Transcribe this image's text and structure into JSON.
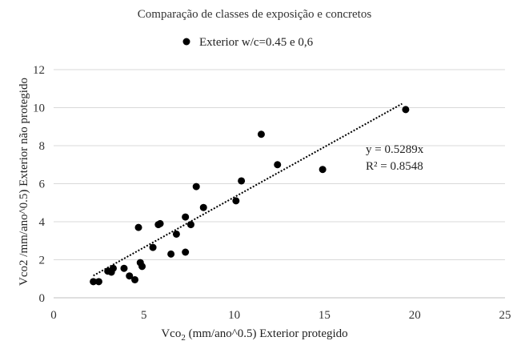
{
  "chart_data": {
    "type": "scatter",
    "title": "Comparação de classes de exposição e concretos",
    "legend": {
      "placement": "top",
      "entries": [
        "Exterior w/c=0.45 e 0,6"
      ]
    },
    "xlabel": {
      "main": "Vco",
      "sub": "2",
      "rest": " (mm/ano^0.5) Exterior protegido"
    },
    "ylabel": "Vco2 /mm/ano^0.5) Exterior não protegido",
    "xlim": [
      0,
      25
    ],
    "ylim": [
      0,
      12
    ],
    "x_ticks": [
      "0",
      "5",
      "10",
      "15",
      "20",
      "25"
    ],
    "y_ticks": [
      "0",
      "2",
      "4",
      "6",
      "8",
      "10",
      "12"
    ],
    "grid": "horizontal",
    "series": [
      {
        "name": "Exterior w/c=0.45 e 0,6",
        "color": "#000000",
        "points": [
          [
            2.2,
            0.85
          ],
          [
            2.5,
            0.85
          ],
          [
            3.0,
            1.4
          ],
          [
            3.2,
            1.35
          ],
          [
            3.3,
            1.55
          ],
          [
            3.9,
            1.55
          ],
          [
            4.2,
            1.15
          ],
          [
            4.5,
            0.95
          ],
          [
            4.7,
            3.7
          ],
          [
            4.8,
            1.85
          ],
          [
            4.9,
            1.65
          ],
          [
            5.5,
            2.65
          ],
          [
            5.8,
            3.85
          ],
          [
            5.9,
            3.9
          ],
          [
            6.5,
            2.3
          ],
          [
            6.8,
            3.35
          ],
          [
            7.3,
            4.25
          ],
          [
            7.3,
            2.4
          ],
          [
            7.6,
            3.85
          ],
          [
            7.9,
            5.85
          ],
          [
            8.3,
            4.75
          ],
          [
            10.1,
            5.1
          ],
          [
            10.4,
            6.15
          ],
          [
            11.5,
            8.6
          ],
          [
            12.4,
            7.0
          ],
          [
            14.9,
            6.75
          ],
          [
            19.5,
            9.9
          ]
        ]
      }
    ],
    "trendline": {
      "type": "linear-through-origin",
      "slope": 0.5289,
      "x_range": [
        2.2,
        19.3
      ],
      "style": "dotted",
      "equation": "y = 0.5289x",
      "r2": "R² = 0.8548"
    }
  }
}
